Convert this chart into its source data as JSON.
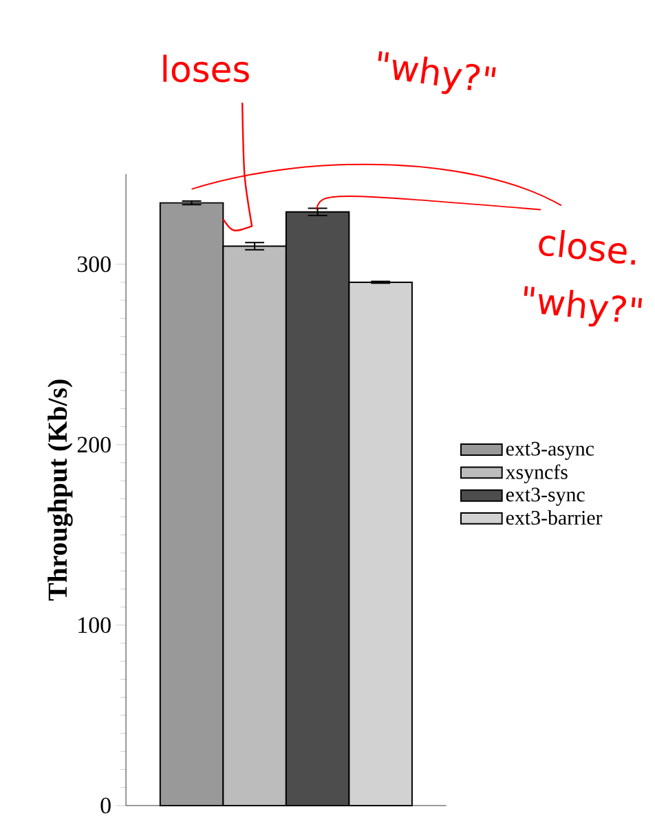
{
  "chart_data": {
    "type": "bar",
    "ylabel": "Throughput (Kb/s)",
    "categories": [
      null
    ],
    "series": [
      {
        "name": "ext3-async",
        "color": "#999999",
        "values": [
          334
        ],
        "errors": [
          1
        ]
      },
      {
        "name": "xsyncfs",
        "color": "#bcbcbc",
        "values": [
          310
        ],
        "errors": [
          2
        ]
      },
      {
        "name": "ext3-sync",
        "color": "#4d4d4d",
        "values": [
          329
        ],
        "errors": [
          2
        ]
      },
      {
        "name": "ext3-barrier",
        "color": "#d2d2d2",
        "values": [
          290
        ],
        "errors": [
          0.5
        ]
      }
    ],
    "ylim": [
      0,
      350
    ],
    "yticks": [
      0,
      100,
      200,
      300
    ],
    "grid": false,
    "legend": "right",
    "annotations": [
      "loses",
      "\"why?\"",
      "close.",
      "\"why?\""
    ]
  }
}
